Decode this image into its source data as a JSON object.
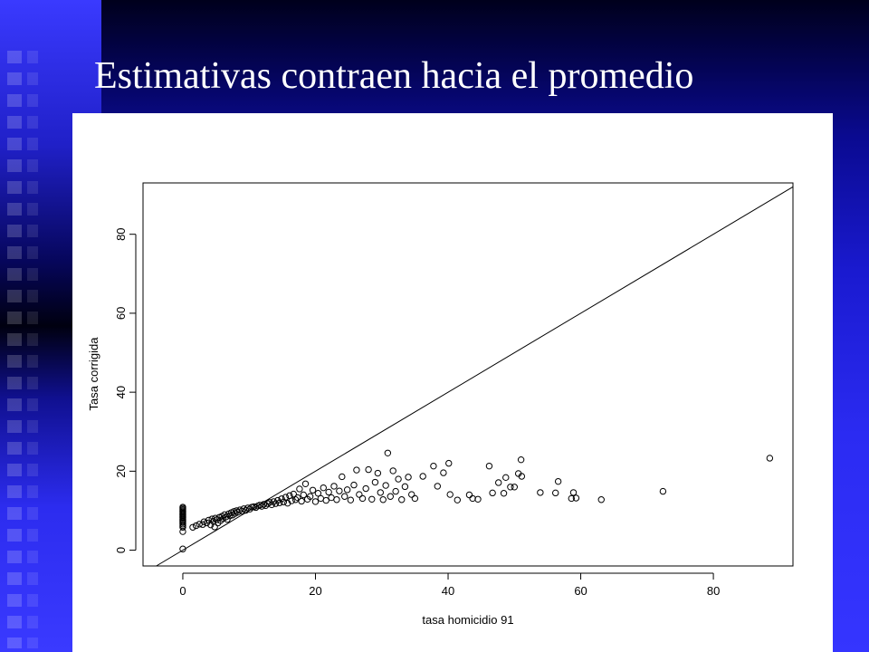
{
  "slide": {
    "title": "Estimativas contraen hacia el promedio"
  },
  "chart_data": {
    "type": "scatter",
    "xlabel": "tasa homicidio 91",
    "ylabel": "Tasa corrigida",
    "xlim": [
      -6,
      92
    ],
    "ylim": [
      -4,
      93
    ],
    "xticks": [
      0,
      20,
      40,
      60,
      80
    ],
    "yticks": [
      0,
      20,
      40,
      60,
      80
    ],
    "reference_line": {
      "slope": 1,
      "intercept": 0
    },
    "series": [
      {
        "points": [
          [
            0,
            0.3
          ],
          [
            0,
            4.7
          ],
          [
            0,
            5.8
          ],
          [
            0,
            6.2
          ],
          [
            0,
            6.6
          ],
          [
            0,
            7.0
          ],
          [
            0,
            7.3
          ],
          [
            0,
            7.6
          ],
          [
            0,
            7.9
          ],
          [
            0,
            8.2
          ],
          [
            0,
            8.5
          ],
          [
            0,
            8.8
          ],
          [
            0,
            9.1
          ],
          [
            0,
            9.4
          ],
          [
            0,
            9.7
          ],
          [
            0,
            10.0
          ],
          [
            0,
            10.3
          ],
          [
            0,
            10.6
          ],
          [
            0,
            10.9
          ],
          [
            1.5,
            5.8
          ],
          [
            2.0,
            6.2
          ],
          [
            2.5,
            6.6
          ],
          [
            3.0,
            6.5
          ],
          [
            3.2,
            7.2
          ],
          [
            3.6,
            6.9
          ],
          [
            3.9,
            7.6
          ],
          [
            4.2,
            6.4
          ],
          [
            4.4,
            7.9
          ],
          [
            4.6,
            7.3
          ],
          [
            4.8,
            5.9
          ],
          [
            4.9,
            8.1
          ],
          [
            5.1,
            7.7
          ],
          [
            5.3,
            6.9
          ],
          [
            5.5,
            8.3
          ],
          [
            5.7,
            7.5
          ],
          [
            5.9,
            8.6
          ],
          [
            6.1,
            8.0
          ],
          [
            6.3,
            9.0
          ],
          [
            6.5,
            8.4
          ],
          [
            6.7,
            7.8
          ],
          [
            6.9,
            9.2
          ],
          [
            7.1,
            8.7
          ],
          [
            7.3,
            9.5
          ],
          [
            7.5,
            8.9
          ],
          [
            7.7,
            9.8
          ],
          [
            7.9,
            9.3
          ],
          [
            8.1,
            10.0
          ],
          [
            8.3,
            9.6
          ],
          [
            8.6,
            10.2
          ],
          [
            8.9,
            9.9
          ],
          [
            9.2,
            10.5
          ],
          [
            9.5,
            10.1
          ],
          [
            9.8,
            10.7
          ],
          [
            10.1,
            10.4
          ],
          [
            10.4,
            10.9
          ],
          [
            10.7,
            11.0
          ],
          [
            11.0,
            10.8
          ],
          [
            11.3,
            11.2
          ],
          [
            11.6,
            11.4
          ],
          [
            11.9,
            11.1
          ],
          [
            12.2,
            11.6
          ],
          [
            12.5,
            11.3
          ],
          [
            12.8,
            11.8
          ],
          [
            13.1,
            12.1
          ],
          [
            13.4,
            11.5
          ],
          [
            13.7,
            12.3
          ],
          [
            14.0,
            11.8
          ],
          [
            14.3,
            12.6
          ],
          [
            14.6,
            12.0
          ],
          [
            14.9,
            13.0
          ],
          [
            15.2,
            12.2
          ],
          [
            15.5,
            13.4
          ],
          [
            15.8,
            11.9
          ],
          [
            16.1,
            13.8
          ],
          [
            16.4,
            12.5
          ],
          [
            16.7,
            14.2
          ],
          [
            17.0,
            12.8
          ],
          [
            17.3,
            13.3
          ],
          [
            17.6,
            15.5
          ],
          [
            17.9,
            12.4
          ],
          [
            18.2,
            14.0
          ],
          [
            18.5,
            16.8
          ],
          [
            18.8,
            12.9
          ],
          [
            19.2,
            13.6
          ],
          [
            19.6,
            15.2
          ],
          [
            20.0,
            12.3
          ],
          [
            20.4,
            14.4
          ],
          [
            20.8,
            13.1
          ],
          [
            21.2,
            15.8
          ],
          [
            21.6,
            12.6
          ],
          [
            22.0,
            14.7
          ],
          [
            22.4,
            13.3
          ],
          [
            22.8,
            16.2
          ],
          [
            23.2,
            12.8
          ],
          [
            23.6,
            15.0
          ],
          [
            24.0,
            18.6
          ],
          [
            24.4,
            13.6
          ],
          [
            24.8,
            15.3
          ],
          [
            25.3,
            12.7
          ],
          [
            25.8,
            16.5
          ],
          [
            26.2,
            20.3
          ],
          [
            26.6,
            14.1
          ],
          [
            27.1,
            13.1
          ],
          [
            27.6,
            15.6
          ],
          [
            28.0,
            20.4
          ],
          [
            28.5,
            12.9
          ],
          [
            29.0,
            17.2
          ],
          [
            29.4,
            19.5
          ],
          [
            29.8,
            14.6
          ],
          [
            30.2,
            12.8
          ],
          [
            30.6,
            16.4
          ],
          [
            30.9,
            24.6
          ],
          [
            31.3,
            13.6
          ],
          [
            31.7,
            20.1
          ],
          [
            32.1,
            14.9
          ],
          [
            32.5,
            18.0
          ],
          [
            33.0,
            12.8
          ],
          [
            33.5,
            16.1
          ],
          [
            34.0,
            18.5
          ],
          [
            34.5,
            14.1
          ],
          [
            35.0,
            13.1
          ],
          [
            36.2,
            18.7
          ],
          [
            37.8,
            21.3
          ],
          [
            38.4,
            16.2
          ],
          [
            39.3,
            19.6
          ],
          [
            40.1,
            22.0
          ],
          [
            40.3,
            14.1
          ],
          [
            41.4,
            12.7
          ],
          [
            43.2,
            14.0
          ],
          [
            43.7,
            13.1
          ],
          [
            44.5,
            12.9
          ],
          [
            46.2,
            21.3
          ],
          [
            46.7,
            14.5
          ],
          [
            47.6,
            17.1
          ],
          [
            48.4,
            14.4
          ],
          [
            48.7,
            18.4
          ],
          [
            49.4,
            16.0
          ],
          [
            50.0,
            16.0
          ],
          [
            50.6,
            19.4
          ],
          [
            51.0,
            22.9
          ],
          [
            51.1,
            18.7
          ],
          [
            53.9,
            14.6
          ],
          [
            56.2,
            14.5
          ],
          [
            56.6,
            17.4
          ],
          [
            58.6,
            13.1
          ],
          [
            58.9,
            14.6
          ],
          [
            59.3,
            13.2
          ],
          [
            63.1,
            12.8
          ],
          [
            72.4,
            14.9
          ],
          [
            88.5,
            23.3
          ]
        ]
      }
    ]
  }
}
